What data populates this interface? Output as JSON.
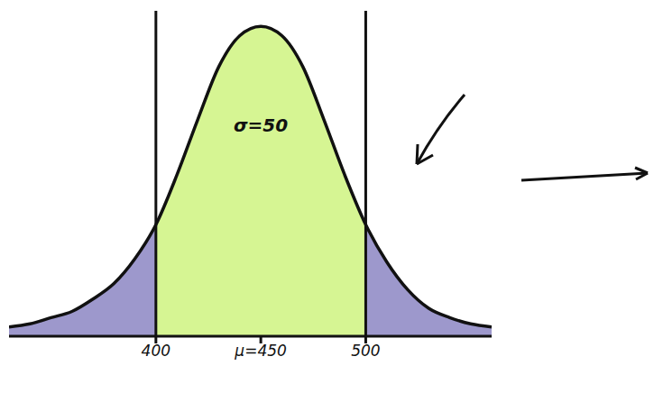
{
  "chart_data": {
    "type": "area",
    "x": [
      330,
      340,
      350,
      360,
      370,
      380,
      390,
      400,
      410,
      420,
      430,
      440,
      450,
      460,
      470,
      480,
      490,
      500,
      510,
      520,
      530,
      540,
      550,
      560
    ],
    "values": [
      3,
      4,
      6,
      8,
      12,
      17,
      25,
      36,
      52,
      70,
      87,
      97,
      100,
      97,
      87,
      70,
      52,
      36,
      24,
      15,
      9,
      6,
      4,
      3
    ],
    "color": "#111111",
    "xlim": [
      330,
      560
    ],
    "xticks": [
      400,
      {
        "value": 450,
        "label": "μ=450"
      },
      500
    ],
    "ylim": [
      0,
      105
    ],
    "tick_labels": "x",
    "grid": false,
    "regions": [
      {
        "xlim": [
          330,
          400
        ],
        "color": "#9d98cc"
      },
      {
        "xlim": [
          400,
          500
        ],
        "color": "#d6f593"
      },
      {
        "xlim": [
          500,
          560
        ],
        "color": "#9d98cc"
      }
    ],
    "vlines": [
      400,
      500
    ],
    "annotations": [
      {
        "text": "σ=50",
        "x": 450,
        "y": 68
      }
    ]
  }
}
